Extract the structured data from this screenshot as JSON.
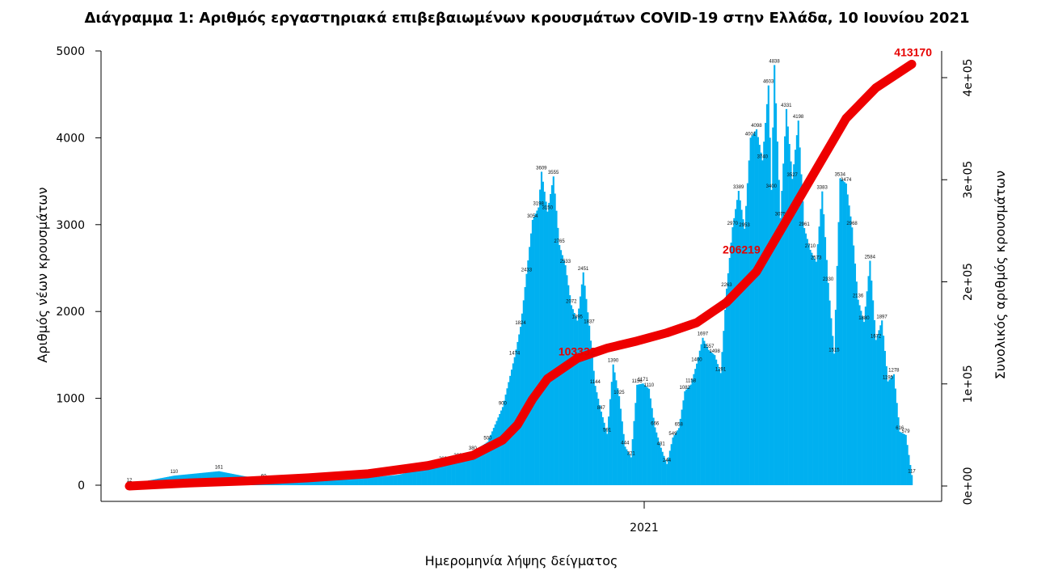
{
  "chart_data": {
    "type": "bar",
    "title": "Διάγραμμα 1: Αριθμός εργαστηριακά επιβεβαιωμένων κρουσμάτων COVID-19 στην Ελλάδα, 10 Ιουνίου 2021",
    "xlabel": "Ημερομηνία λήψης δείγματος",
    "ylabel": "Αριθμός νέων κρουσμάτων",
    "ylabel_right": "Συνολικός αριθμός κρουσμάτων",
    "ylim": [
      0,
      5000
    ],
    "ylim_right": [
      0,
      400000
    ],
    "y_ticks": [
      "0",
      "1000",
      "2000",
      "3000",
      "4000",
      "5000"
    ],
    "y_right_ticks": [
      "0e+00",
      "1e+05",
      "2e+05",
      "3e+05",
      "4e+05"
    ],
    "x_ticks": [
      "2021"
    ],
    "bar_color": "#00b0f0",
    "line_color": "#ee0000",
    "daily_cases": [
      [
        0,
        12
      ],
      [
        30,
        110
      ],
      [
        60,
        161
      ],
      [
        90,
        60
      ],
      [
        120,
        55
      ],
      [
        150,
        70
      ],
      [
        180,
        120
      ],
      [
        200,
        200
      ],
      [
        210,
        260
      ],
      [
        220,
        300
      ],
      [
        230,
        380
      ],
      [
        240,
        500
      ],
      [
        250,
        900
      ],
      [
        258,
        1474
      ],
      [
        262,
        1824
      ],
      [
        266,
        2433
      ],
      [
        270,
        3054
      ],
      [
        274,
        3198
      ],
      [
        276,
        3609
      ],
      [
        280,
        3150
      ],
      [
        284,
        3555
      ],
      [
        288,
        2765
      ],
      [
        292,
        2533
      ],
      [
        296,
        2072
      ],
      [
        300,
        1895
      ],
      [
        304,
        2451
      ],
      [
        308,
        1837
      ],
      [
        312,
        1144
      ],
      [
        316,
        847
      ],
      [
        320,
        591
      ],
      [
        324,
        1390
      ],
      [
        328,
        1025
      ],
      [
        332,
        444
      ],
      [
        336,
        321
      ],
      [
        340,
        1156
      ],
      [
        344,
        1171
      ],
      [
        348,
        1110
      ],
      [
        352,
        666
      ],
      [
        356,
        431
      ],
      [
        360,
        244
      ],
      [
        364,
        549
      ],
      [
        368,
        658
      ],
      [
        372,
        1082
      ],
      [
        376,
        1158
      ],
      [
        380,
        1400
      ],
      [
        384,
        1697
      ],
      [
        388,
        1557
      ],
      [
        392,
        1498
      ],
      [
        396,
        1291
      ],
      [
        400,
        2263
      ],
      [
        404,
        2970
      ],
      [
        408,
        3389
      ],
      [
        412,
        2953
      ],
      [
        416,
        4001
      ],
      [
        420,
        4098
      ],
      [
        424,
        3740
      ],
      [
        428,
        4603
      ],
      [
        430,
        3400
      ],
      [
        432,
        4838
      ],
      [
        436,
        3075
      ],
      [
        440,
        4331
      ],
      [
        444,
        3527
      ],
      [
        448,
        4198
      ],
      [
        452,
        2961
      ],
      [
        456,
        2710
      ],
      [
        460,
        2573
      ],
      [
        464,
        3383
      ],
      [
        468,
        2330
      ],
      [
        472,
        1515
      ],
      [
        476,
        3534
      ],
      [
        480,
        3474
      ],
      [
        484,
        2968
      ],
      [
        488,
        2136
      ],
      [
        492,
        1880
      ],
      [
        496,
        2584
      ],
      [
        500,
        1672
      ],
      [
        504,
        1897
      ],
      [
        508,
        1195
      ],
      [
        512,
        1278
      ],
      [
        516,
        616
      ],
      [
        520,
        579
      ],
      [
        524,
        117
      ]
    ],
    "cumulative_points": [
      [
        0,
        0
      ],
      [
        40,
        3000
      ],
      [
        80,
        5000
      ],
      [
        120,
        8000
      ],
      [
        160,
        12000
      ],
      [
        200,
        20000
      ],
      [
        230,
        30000
      ],
      [
        250,
        45000
      ],
      [
        260,
        60000
      ],
      [
        270,
        85000
      ],
      [
        280,
        105000
      ],
      [
        290,
        115000
      ],
      [
        300,
        125000
      ],
      [
        320,
        135000
      ],
      [
        340,
        142000
      ],
      [
        360,
        150000
      ],
      [
        380,
        160000
      ],
      [
        400,
        180000
      ],
      [
        420,
        210000
      ],
      [
        440,
        260000
      ],
      [
        460,
        310000
      ],
      [
        480,
        360000
      ],
      [
        500,
        390000
      ],
      [
        524,
        413170
      ]
    ],
    "annotations": [
      {
        "text": "103332",
        "x": 300,
        "y": 120000
      },
      {
        "text": "206219",
        "x": 410,
        "y": 220000
      },
      {
        "text": "413170",
        "x": 524,
        "y": 413170
      }
    ]
  }
}
